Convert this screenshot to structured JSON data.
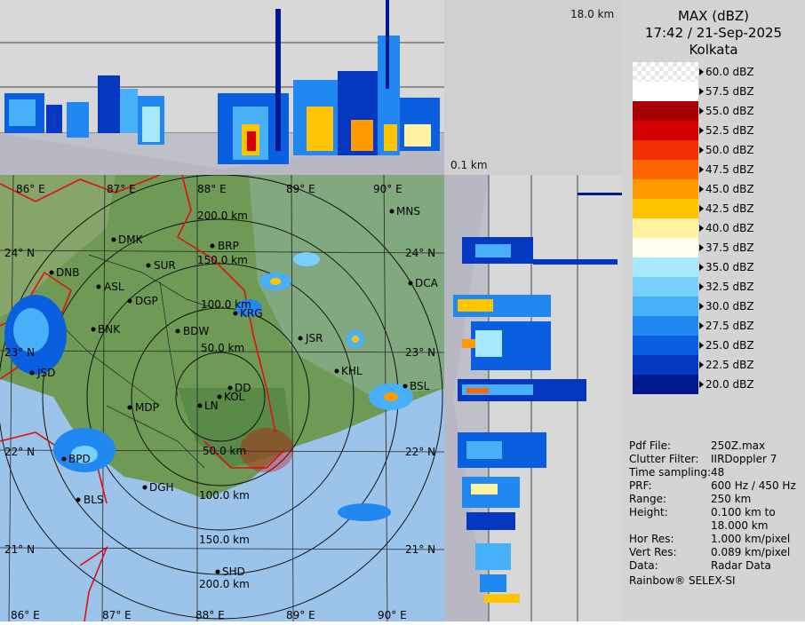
{
  "profile": {
    "top_height_label": "18.0 km",
    "bottom_height_label": "0.1 km"
  },
  "header": {
    "product": "MAX (dBZ)",
    "datetime": "17:42 / 21-Sep-2025",
    "station": "Kolkata"
  },
  "legend": {
    "items": [
      {
        "label": "60.0 dBZ",
        "color": "checker"
      },
      {
        "label": "57.5 dBZ",
        "color": "#ffffff"
      },
      {
        "label": "55.0 dBZ",
        "color": "#a80000"
      },
      {
        "label": "52.5 dBZ",
        "color": "#d40000"
      },
      {
        "label": "50.0 dBZ",
        "color": "#f03000"
      },
      {
        "label": "47.5 dBZ",
        "color": "#ff6600"
      },
      {
        "label": "45.0 dBZ",
        "color": "#ff9a00"
      },
      {
        "label": "42.5 dBZ",
        "color": "#ffc400"
      },
      {
        "label": "40.0 dBZ",
        "color": "#fff2a0"
      },
      {
        "label": "37.5 dBZ",
        "color": "#fffff0"
      },
      {
        "label": "35.0 dBZ",
        "color": "#a8e8ff"
      },
      {
        "label": "32.5 dBZ",
        "color": "#78d0ff"
      },
      {
        "label": "30.0 dBZ",
        "color": "#48b0f8"
      },
      {
        "label": "27.5 dBZ",
        "color": "#2088f0"
      },
      {
        "label": "25.0 dBZ",
        "color": "#0a5ee0"
      },
      {
        "label": "22.5 dBZ",
        "color": "#0438c0"
      },
      {
        "label": "20.0 dBZ",
        "color": "#001890"
      }
    ]
  },
  "info": {
    "rows": [
      {
        "key": "Pdf File:",
        "value": "250Z.max"
      },
      {
        "key": "Clutter Filter:",
        "value": "IIRDoppler 7"
      },
      {
        "key": "Time sampling:",
        "value": "48"
      },
      {
        "key": "PRF:",
        "value": "600 Hz / 450 Hz"
      },
      {
        "key": "Range:",
        "value": "250 km"
      },
      {
        "key": "Height:",
        "value": "0.100 km to"
      },
      {
        "key": "",
        "value": "18.000 km"
      },
      {
        "key": "Hor Res:",
        "value": "1.000 km/pixel"
      },
      {
        "key": "Vert Res:",
        "value": "0.089 km/pixel"
      },
      {
        "key": "Data:",
        "value": "Radar Data"
      }
    ],
    "footer": "Rainbow® SELEX-SI"
  },
  "map": {
    "longitudes": [
      "86° E",
      "87° E",
      "88° E",
      "89° E",
      "90° E"
    ],
    "longitudes_bottom": [
      "86° E",
      "87° E",
      "88° E",
      "89° E",
      "90° E"
    ],
    "latitudes_left": [
      "24° N",
      "23° N",
      "22° N",
      "21° N"
    ],
    "latitudes_right": [
      "24° N",
      "23° N",
      "22° N",
      "21° N"
    ],
    "range_rings": [
      "50.0 km",
      "100.0 km",
      "150.0 km",
      "200.0 km"
    ],
    "range_rings_bottom": [
      "50.0 km",
      "100.0 km",
      "150.0 km",
      "200.0 km"
    ],
    "cities": [
      "MNS",
      "DMK",
      "BRP",
      "DNB",
      "SUR",
      "ASL",
      "DGP",
      "DCA",
      "KRG",
      "BNK",
      "BDW",
      "JSR",
      "KHL",
      "BSL",
      "JSD",
      "DD",
      "KOL",
      "MDP",
      "LN",
      "BPD",
      "DGH",
      "BLS",
      "SHD"
    ]
  },
  "colors": {
    "background_gray": "#d4d4d4",
    "land_green": "#6f9a55",
    "sea_blue": "#9cc4ea",
    "border_red": "#e01010"
  }
}
